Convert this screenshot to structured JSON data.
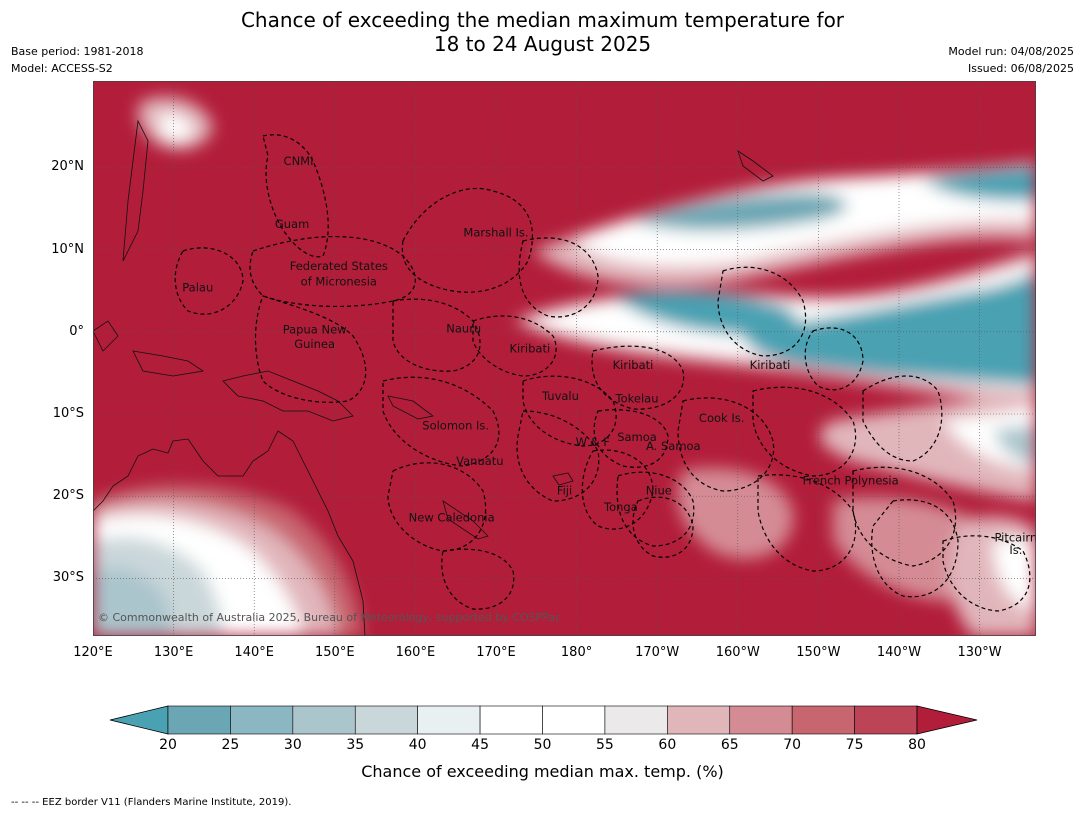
{
  "title": {
    "line1": "Chance of exceeding the median maximum temperature for",
    "line2": "18 to 24 August 2025"
  },
  "meta_left": {
    "base_period": "Base period: 1981-2018",
    "model": "Model: ACCESS-S2"
  },
  "meta_right": {
    "model_run": "Model run: 04/08/2025",
    "issued": "Issued: 06/08/2025"
  },
  "latitude_ticks": [
    {
      "label": "20°N",
      "value": 20
    },
    {
      "label": "10°N",
      "value": 10
    },
    {
      "label": "0°",
      "value": 0
    },
    {
      "label": "10°S",
      "value": -10
    },
    {
      "label": "20°S",
      "value": -20
    },
    {
      "label": "30°S",
      "value": -30
    }
  ],
  "longitude_ticks": [
    {
      "label": "120°E",
      "value": 120
    },
    {
      "label": "130°E",
      "value": 130
    },
    {
      "label": "140°E",
      "value": 140
    },
    {
      "label": "150°E",
      "value": 150
    },
    {
      "label": "160°E",
      "value": 160
    },
    {
      "label": "170°E",
      "value": 170
    },
    {
      "label": "180°",
      "value": 180
    },
    {
      "label": "170°W",
      "value": 190
    },
    {
      "label": "160°W",
      "value": 200
    },
    {
      "label": "150°W",
      "value": 210
    },
    {
      "label": "140°W",
      "value": 220
    },
    {
      "label": "130°W",
      "value": 230
    }
  ],
  "map_extent": {
    "lon_min": 120,
    "lon_max": 237,
    "lat_min": -37,
    "lat_max": 30.5
  },
  "places": [
    {
      "name": "CNMI",
      "lon": 145.5,
      "lat": 20.3
    },
    {
      "name": "Guam",
      "lon": 144.7,
      "lat": 12.6
    },
    {
      "name": "Marshall Is.",
      "lon": 170.0,
      "lat": 11.6
    },
    {
      "name": "Federated States",
      "lon": 150.5,
      "lat": 7.5
    },
    {
      "name": "of Micronesia",
      "lon": 150.5,
      "lat": 5.6
    },
    {
      "name": "Palau",
      "lon": 133.0,
      "lat": 4.9
    },
    {
      "name": "Papua New",
      "lon": 147.5,
      "lat": -0.2
    },
    {
      "name": "Guinea",
      "lon": 147.5,
      "lat": -2.0
    },
    {
      "name": "Nauru",
      "lon": 166.0,
      "lat": -0.1
    },
    {
      "name": "Kiribati",
      "lon": 174.2,
      "lat": -2.5
    },
    {
      "name": "Kiribati",
      "lon": 187.0,
      "lat": -4.5
    },
    {
      "name": "Kiribati",
      "lon": 204.0,
      "lat": -4.5
    },
    {
      "name": "Tuvalu",
      "lon": 178.0,
      "lat": -8.3
    },
    {
      "name": "Tokelau",
      "lon": 187.5,
      "lat": -8.6
    },
    {
      "name": "Cook Is.",
      "lon": 198.0,
      "lat": -11.0
    },
    {
      "name": "Solomon Is.",
      "lon": 165.0,
      "lat": -11.9
    },
    {
      "name": "Samoa",
      "lon": 187.5,
      "lat": -13.3
    },
    {
      "name": "W & F",
      "lon": 182.0,
      "lat": -13.9
    },
    {
      "name": "A. Samoa",
      "lon": 192.0,
      "lat": -14.4
    },
    {
      "name": "Vanuatu",
      "lon": 168.0,
      "lat": -16.2
    },
    {
      "name": "Niue",
      "lon": 190.2,
      "lat": -19.8
    },
    {
      "name": "Fiji",
      "lon": 178.5,
      "lat": -19.8
    },
    {
      "name": "French Polynesia",
      "lon": 214.0,
      "lat": -18.6
    },
    {
      "name": "Tonga",
      "lon": 185.5,
      "lat": -21.8
    },
    {
      "name": "New Caledonia",
      "lon": 164.5,
      "lat": -23.1
    },
    {
      "name": "Pitcairn",
      "lon": 234.5,
      "lat": -25.5
    },
    {
      "name": "Is.",
      "lon": 234.5,
      "lat": -27.0
    }
  ],
  "credit": "© Commonwealth of Australia 2025, Bureau of Meteorology, supported by COSPPac",
  "colorbar": {
    "labels": [
      "20",
      "25",
      "30",
      "35",
      "40",
      "45",
      "50",
      "55",
      "60",
      "65",
      "70",
      "75",
      "80"
    ],
    "colors": [
      "#6aa6b3",
      "#8bb7c2",
      "#aac5cc",
      "#cad7da",
      "#e9f0f2",
      "#ffffff",
      "#ffffff",
      "#ebe9ea",
      "#e1b6bb",
      "#d48b94",
      "#c86670",
      "#bd4456"
    ],
    "under_color": "#4aa1b2",
    "over_color": "#b21d3a",
    "title": "Chance of exceeding median max. temp. (%)"
  },
  "footnote": "--  --  -- EEZ border V11 (Flanders Marine Institute, 2019)."
}
